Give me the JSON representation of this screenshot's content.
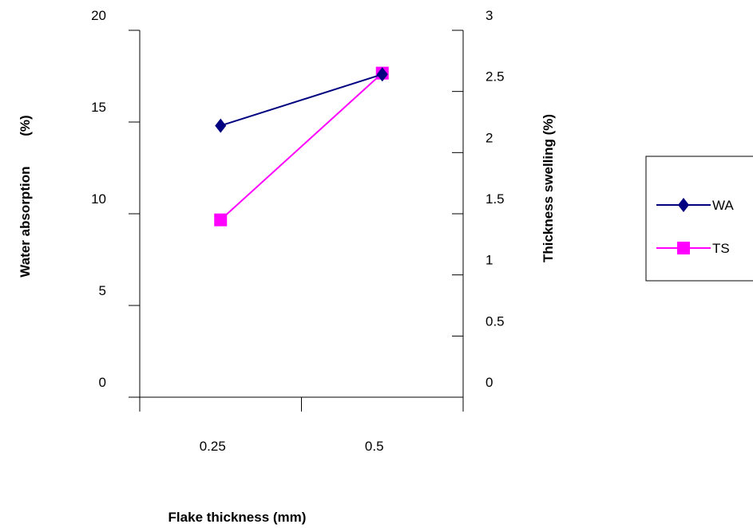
{
  "chart_data": {
    "type": "line",
    "title": "",
    "xlabel": "Flake thickness (mm)",
    "ylabel": "Water absorption        (%)",
    "y2label": "Thickness swelling (%)",
    "categories": [
      "0.25",
      "0.5"
    ],
    "ylim": [
      0,
      20
    ],
    "y2lim": [
      0,
      3
    ],
    "yticks": [
      "0",
      "5",
      "10",
      "15",
      "20"
    ],
    "y2ticks": [
      "0",
      "0.5",
      "1",
      "1.5",
      "2",
      "2.5",
      "3"
    ],
    "grid": false,
    "legend_position": "right",
    "series": [
      {
        "name": "WA",
        "axis": "left",
        "values": [
          14.8,
          17.6
        ],
        "color": "#000080",
        "marker": "diamond"
      },
      {
        "name": "TS",
        "axis": "right",
        "values": [
          1.45,
          2.65
        ],
        "color": "#FF00FF",
        "marker": "square"
      }
    ]
  }
}
